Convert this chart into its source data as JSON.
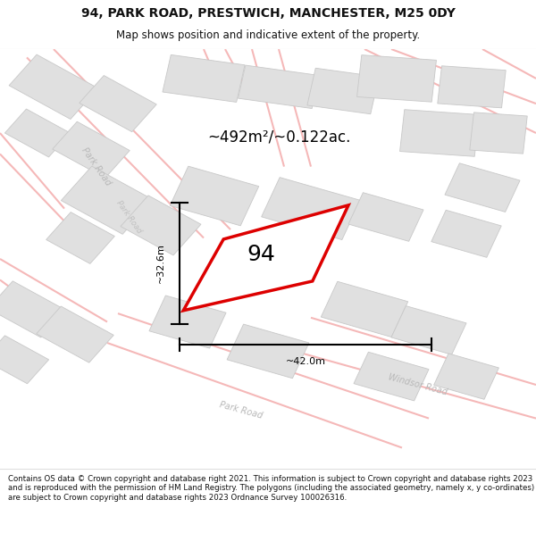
{
  "title": "94, PARK ROAD, PRESTWICH, MANCHESTER, M25 0DY",
  "subtitle": "Map shows position and indicative extent of the property.",
  "area_label": "~492m²/~0.122ac.",
  "number_label": "94",
  "dim_width": "~42.0m",
  "dim_height": "~32.6m",
  "footer": "Contains OS data © Crown copyright and database right 2021. This information is subject to Crown copyright and database rights 2023 and is reproduced with the permission of HM Land Registry. The polygons (including the associated geometry, namely x, y co-ordinates) are subject to Crown copyright and database rights 2023 Ordnance Survey 100026316.",
  "bg_color": "#f8f8f8",
  "road_color": "#f5b8b8",
  "road_fill": "#ffffff",
  "building_color": "#e0e0e0",
  "building_edge": "#c8c8c8",
  "property_color": "#dd0000",
  "road_label_color": "#c0c0c0",
  "title_color": "#111111",
  "footer_color": "#111111"
}
